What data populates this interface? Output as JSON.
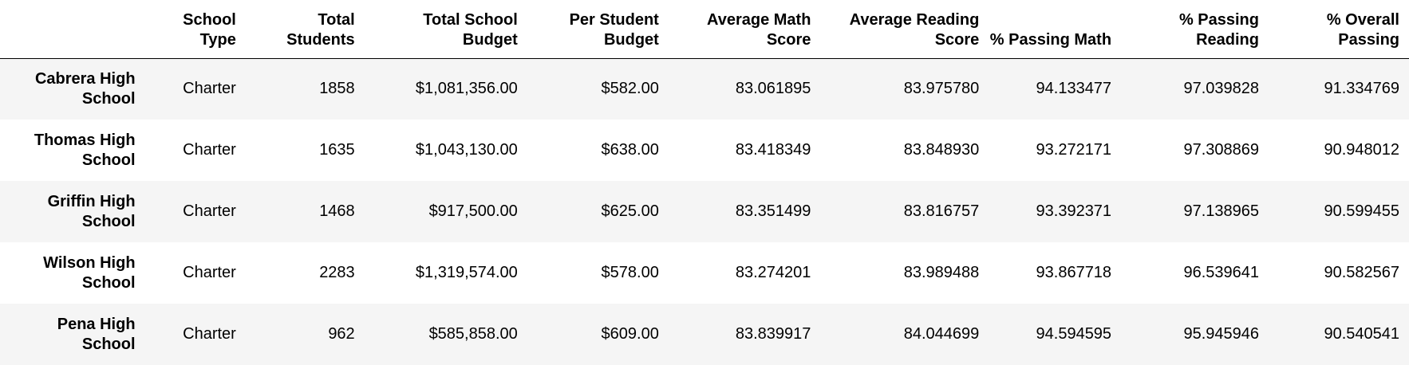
{
  "table": {
    "columns": [
      {
        "label": "",
        "key": "index"
      },
      {
        "label": "School Type",
        "key": "type"
      },
      {
        "label": "Total Students",
        "key": "students"
      },
      {
        "label": "Total School Budget",
        "key": "budget"
      },
      {
        "label": "Per Student Budget",
        "key": "per_student"
      },
      {
        "label": "Average Math Score",
        "key": "avg_math"
      },
      {
        "label": "Average Reading Score",
        "key": "avg_reading"
      },
      {
        "label": "% Passing Math",
        "key": "pass_math"
      },
      {
        "label": "% Passing Reading",
        "key": "pass_reading"
      },
      {
        "label": "% Overall Passing",
        "key": "pass_overall"
      }
    ],
    "rows": [
      {
        "name": "Cabrera High School",
        "cells": [
          "Charter",
          "1858",
          "$1,081,356.00",
          "$582.00",
          "83.061895",
          "83.975780",
          "94.133477",
          "97.039828",
          "91.334769"
        ]
      },
      {
        "name": "Thomas High School",
        "cells": [
          "Charter",
          "1635",
          "$1,043,130.00",
          "$638.00",
          "83.418349",
          "83.848930",
          "93.272171",
          "97.308869",
          "90.948012"
        ]
      },
      {
        "name": "Griffin High School",
        "cells": [
          "Charter",
          "1468",
          "$917,500.00",
          "$625.00",
          "83.351499",
          "83.816757",
          "93.392371",
          "97.138965",
          "90.599455"
        ]
      },
      {
        "name": "Wilson High School",
        "cells": [
          "Charter",
          "2283",
          "$1,319,574.00",
          "$578.00",
          "83.274201",
          "83.989488",
          "93.867718",
          "96.539641",
          "90.582567"
        ]
      },
      {
        "name": "Pena High School",
        "cells": [
          "Charter",
          "962",
          "$585,858.00",
          "$609.00",
          "83.839917",
          "84.044699",
          "94.594595",
          "95.945946",
          "90.540541"
        ]
      }
    ]
  }
}
